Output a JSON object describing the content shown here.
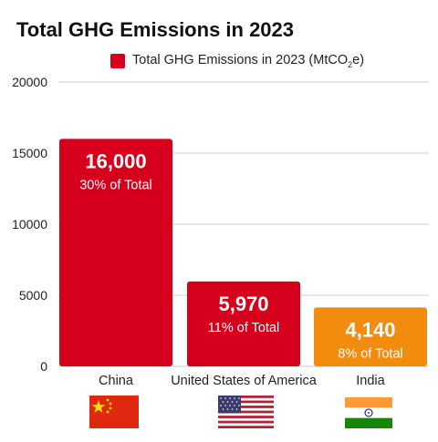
{
  "title": "Total GHG Emissions in 2023",
  "legend": {
    "label_main": "Total GHG Emissions in 2023 (MtCO",
    "label_sub": "2",
    "label_tail": "e)"
  },
  "colors": {
    "china": "#d6001c",
    "usa": "#d6001c",
    "india": "#f28c0f",
    "gridline": "#cccccc",
    "text": "#222222"
  },
  "chart_data": {
    "type": "bar",
    "title": "Total GHG Emissions in 2023",
    "xlabel": "",
    "ylabel": "",
    "ylim": [
      0,
      20000
    ],
    "yticks": [
      0,
      5000,
      10000,
      15000,
      20000
    ],
    "grid": true,
    "legend_position": "top",
    "categories": [
      "China",
      "United States of America",
      "India"
    ],
    "series": [
      {
        "name": "Total GHG Emissions in 2023 (MtCO₂e)",
        "values": [
          16000,
          5970,
          4140
        ],
        "value_labels": [
          "16,000",
          "5,970",
          "4,140"
        ],
        "share_labels": [
          "30% of Total",
          "11% of Total",
          "8% of Total"
        ],
        "colors": [
          "#d6001c",
          "#d6001c",
          "#f28c0f"
        ]
      }
    ]
  },
  "flags": [
    "china-flag",
    "usa-flag",
    "india-flag"
  ]
}
